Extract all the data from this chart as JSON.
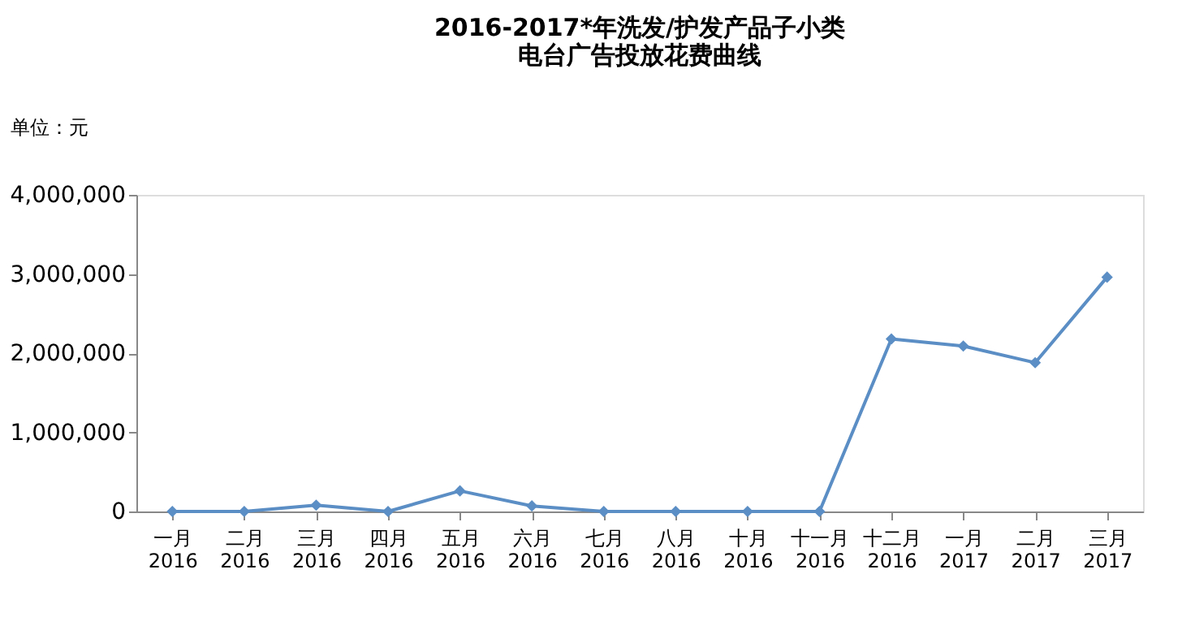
{
  "chart_data": {
    "type": "line",
    "title": [
      "2016-2017*年洗发/护发产品子小类",
      "电台广告投放花费曲线"
    ],
    "ylabel": "单位：元",
    "categories": [
      "一月 2016",
      "二月 2016",
      "三月 2016",
      "四月 2016",
      "五月 2016",
      "六月 2016",
      "七月 2016",
      "八月 2016",
      "十月 2016",
      "十一月 2016",
      "十二月 2016",
      "一月 2017",
      "二月 2017",
      "三月 2017"
    ],
    "series": [
      {
        "color": "#5b8ec4",
        "values": [
          0,
          0,
          80000,
          0,
          260000,
          70000,
          0,
          0,
          0,
          0,
          2180000,
          2090000,
          1880000,
          2960000
        ]
      }
    ],
    "ylim": [
      0,
      4000000
    ],
    "yticks": [
      {
        "value": 0,
        "label": "0"
      },
      {
        "value": 1000000,
        "label": "1,000,000"
      },
      {
        "value": 2000000,
        "label": "2,000,000"
      },
      {
        "value": 3000000,
        "label": "3,000,000"
      },
      {
        "value": 4000000,
        "label": "4,000,000"
      }
    ],
    "grid": false,
    "marker": "diamond",
    "line_style": "solid"
  }
}
